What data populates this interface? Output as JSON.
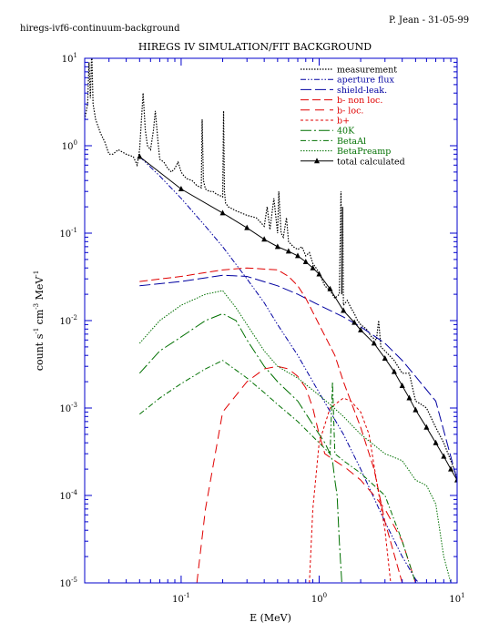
{
  "header": {
    "left": "hiregs-ivf6-continuum-background",
    "right": "P. Jean - 31-05-99"
  },
  "chart_data": {
    "type": "line",
    "title": "HIREGS IV SIMULATION/FIT BACKGROUND",
    "xlabel": "E (MeV)",
    "ylabel_parts": [
      "count s",
      "-1",
      " cm",
      "-3",
      " MeV",
      "-1"
    ],
    "x_scale": "log",
    "y_scale": "log",
    "xlim": [
      0.02,
      10
    ],
    "ylim": [
      1e-05,
      10
    ],
    "x_ticks": [
      {
        "value": 0.1,
        "base": "10",
        "exp": "-1"
      },
      {
        "value": 1,
        "base": "10",
        "exp": "0"
      },
      {
        "value": 10,
        "base": "10",
        "exp": "1"
      }
    ],
    "y_ticks": [
      {
        "value": 1e-05,
        "base": "10",
        "exp": "-5"
      },
      {
        "value": 0.0001,
        "base": "10",
        "exp": "-4"
      },
      {
        "value": 0.001,
        "base": "10",
        "exp": "-3"
      },
      {
        "value": 0.01,
        "base": "10",
        "exp": "-2"
      },
      {
        "value": 0.1,
        "base": "10",
        "exp": "-1"
      },
      {
        "value": 1,
        "base": "10",
        "exp": "0"
      },
      {
        "value": 10,
        "base": "10",
        "exp": "1"
      }
    ],
    "legend_position": "top-right",
    "series": [
      {
        "name": "measurement",
        "color": "#000000",
        "dash": "1.5,1.5",
        "width": 1.2,
        "markers": false,
        "x": [
          0.02,
          0.021,
          0.0215,
          0.022,
          0.0225,
          0.023,
          0.024,
          0.026,
          0.028,
          0.03,
          0.032,
          0.035,
          0.04,
          0.045,
          0.048,
          0.05,
          0.053,
          0.055,
          0.057,
          0.06,
          0.063,
          0.065,
          0.068,
          0.07,
          0.075,
          0.08,
          0.085,
          0.09,
          0.095,
          0.1,
          0.105,
          0.11,
          0.12,
          0.13,
          0.14,
          0.142,
          0.145,
          0.15,
          0.16,
          0.17,
          0.18,
          0.19,
          0.2,
          0.203,
          0.206,
          0.21,
          0.22,
          0.25,
          0.3,
          0.35,
          0.4,
          0.42,
          0.44,
          0.47,
          0.5,
          0.51,
          0.53,
          0.55,
          0.58,
          0.6,
          0.65,
          0.7,
          0.75,
          0.8,
          0.85,
          0.9,
          0.95,
          1.0,
          1.1,
          1.2,
          1.3,
          1.4,
          1.44,
          1.46,
          1.48,
          1.5,
          1.6,
          1.7,
          1.8,
          1.9,
          2.0,
          2.2,
          2.4,
          2.6,
          2.7,
          2.8,
          3.0,
          3.5,
          4.0,
          4.5,
          5.0,
          5.5,
          6.0,
          7.0,
          8.0,
          9.0,
          10.0
        ],
        "y": [
          2.0,
          3.0,
          9.0,
          3.5,
          12.0,
          3.0,
          2.0,
          1.4,
          1.1,
          0.8,
          0.8,
          0.9,
          0.8,
          0.75,
          0.6,
          0.9,
          4.0,
          1.5,
          1.0,
          0.9,
          1.5,
          2.5,
          1.1,
          0.7,
          0.65,
          0.55,
          0.5,
          0.55,
          0.65,
          0.5,
          0.45,
          0.42,
          0.4,
          0.35,
          0.33,
          2.0,
          0.4,
          0.32,
          0.3,
          0.3,
          0.28,
          0.27,
          0.26,
          2.5,
          0.3,
          0.22,
          0.2,
          0.18,
          0.16,
          0.15,
          0.12,
          0.2,
          0.11,
          0.25,
          0.1,
          0.3,
          0.1,
          0.09,
          0.15,
          0.08,
          0.07,
          0.065,
          0.07,
          0.055,
          0.06,
          0.045,
          0.04,
          0.035,
          0.025,
          0.022,
          0.018,
          0.02,
          0.3,
          0.02,
          0.2,
          0.015,
          0.017,
          0.014,
          0.012,
          0.01,
          0.009,
          0.008,
          0.0065,
          0.006,
          0.01,
          0.005,
          0.0045,
          0.0035,
          0.0025,
          0.0025,
          0.0012,
          0.0011,
          0.001,
          0.0006,
          0.0004,
          0.00025,
          0.00016
        ]
      },
      {
        "name": "aperture flux",
        "color": "#0000a0",
        "dash": "6,2,1.5,2,1.5,2",
        "width": 1,
        "markers": false,
        "x": [
          0.05,
          0.07,
          0.1,
          0.15,
          0.2,
          0.3,
          0.4,
          0.5,
          0.7,
          1,
          1.5,
          2,
          3,
          4,
          5,
          6
        ],
        "y": [
          0.75,
          0.45,
          0.25,
          0.12,
          0.07,
          0.03,
          0.016,
          0.009,
          0.004,
          0.0015,
          0.0005,
          0.0002,
          5e-05,
          2e-05,
          1.1e-05,
          8e-06
        ]
      },
      {
        "name": "shield-leak.",
        "color": "#0000a0",
        "dash": "12,4",
        "width": 1,
        "markers": false,
        "x": [
          0.05,
          0.1,
          0.2,
          0.3,
          0.5,
          0.7,
          1,
          1.5,
          2,
          3,
          4,
          5,
          7,
          10
        ],
        "y": [
          0.025,
          0.028,
          0.033,
          0.032,
          0.025,
          0.02,
          0.015,
          0.011,
          0.0085,
          0.0055,
          0.0035,
          0.0023,
          0.0012,
          0.00015
        ]
      },
      {
        "name": "b- non loc.",
        "color": "#e00000",
        "dash": "9,4",
        "width": 1,
        "markers": false,
        "x": [
          0.05,
          0.1,
          0.2,
          0.3,
          0.5,
          0.6,
          0.7,
          0.8,
          1,
          1.3,
          1.5,
          2,
          2.5,
          3,
          4
        ],
        "y": [
          0.028,
          0.032,
          0.038,
          0.04,
          0.038,
          0.032,
          0.025,
          0.018,
          0.009,
          0.004,
          0.002,
          0.0006,
          0.0002,
          5e-05,
          1e-05
        ]
      },
      {
        "name": "b- loc.",
        "color": "#e00000",
        "dash": "10,6",
        "width": 1,
        "markers": false,
        "x": [
          0.13,
          0.15,
          0.2,
          0.3,
          0.4,
          0.5,
          0.6,
          0.7,
          0.8,
          0.9,
          1.0,
          1.1,
          1.3,
          1.6,
          2.0,
          2.5,
          3.0,
          4.0,
          5.0
        ],
        "y": [
          1e-05,
          7e-05,
          0.0009,
          0.002,
          0.0028,
          0.003,
          0.0028,
          0.0023,
          0.0017,
          0.001,
          0.0005,
          0.0003,
          0.00025,
          0.0002,
          0.00015,
          0.0001,
          7e-05,
          3e-05,
          1e-05
        ]
      },
      {
        "name": "b+",
        "color": "#e00000",
        "dash": "3,2.5",
        "width": 1,
        "markers": false,
        "x": [
          0.85,
          0.9,
          1.0,
          1.2,
          1.5,
          1.7,
          2.0,
          2.3,
          2.6,
          3.0,
          3.3
        ],
        "y": [
          1e-05,
          7e-05,
          0.0004,
          0.001,
          0.0013,
          0.0012,
          0.0009,
          0.0005,
          0.00015,
          4e-05,
          1e-05
        ]
      },
      {
        "name": "40K",
        "color": "#007000",
        "dash": "12,3,2,3",
        "width": 1,
        "markers": false,
        "x": [
          0.05,
          0.07,
          0.1,
          0.15,
          0.2,
          0.25,
          0.3,
          0.4,
          0.5,
          0.7,
          1,
          1.1,
          1.2,
          1.25,
          1.3,
          1.35,
          1.4,
          1.46
        ],
        "y": [
          0.0025,
          0.0045,
          0.0065,
          0.01,
          0.012,
          0.01,
          0.006,
          0.003,
          0.002,
          0.0012,
          0.0005,
          0.0004,
          0.0003,
          0.00025,
          0.00015,
          0.0001,
          3e-05,
          1e-05
        ]
      },
      {
        "name": "BetaAl",
        "color": "#007000",
        "dash": "6,2.5,1.5,2.5",
        "width": 1,
        "markers": false,
        "x": [
          0.05,
          0.07,
          0.1,
          0.15,
          0.2,
          0.3,
          0.4,
          0.5,
          0.7,
          1,
          1.2,
          1.25,
          1.3,
          1.5,
          2,
          3,
          4,
          5
        ],
        "y": [
          0.00085,
          0.0013,
          0.0019,
          0.0028,
          0.0035,
          0.0022,
          0.0015,
          0.0011,
          0.0007,
          0.0004,
          0.0003,
          0.002,
          0.0003,
          0.00025,
          0.00018,
          0.0001,
          3e-05,
          1e-05
        ]
      },
      {
        "name": "BetaPreamp",
        "color": "#007000",
        "dash": "1.5,1.5",
        "width": 1,
        "markers": false,
        "x": [
          0.05,
          0.07,
          0.1,
          0.15,
          0.2,
          0.25,
          0.3,
          0.4,
          0.5,
          0.7,
          1,
          1.2,
          1.5,
          2,
          3,
          4,
          5,
          6,
          7,
          8,
          9
        ],
        "y": [
          0.0055,
          0.01,
          0.015,
          0.02,
          0.022,
          0.014,
          0.009,
          0.0045,
          0.003,
          0.0022,
          0.0014,
          0.0011,
          0.0008,
          0.0005,
          0.0003,
          0.00025,
          0.00015,
          0.00013,
          8e-05,
          2e-05,
          1e-05
        ]
      },
      {
        "name": "total calculated",
        "color": "#000000",
        "dash": "",
        "width": 1,
        "markers": true,
        "x": [
          0.05,
          0.1,
          0.2,
          0.3,
          0.4,
          0.5,
          0.6,
          0.7,
          0.8,
          0.9,
          1.0,
          1.2,
          1.5,
          1.8,
          2.0,
          2.5,
          3.0,
          3.5,
          4.0,
          4.5,
          5.0,
          6.0,
          7.0,
          8.0,
          9.0,
          10.0
        ],
        "y": [
          0.75,
          0.32,
          0.17,
          0.115,
          0.085,
          0.07,
          0.062,
          0.055,
          0.047,
          0.04,
          0.034,
          0.023,
          0.013,
          0.0095,
          0.0078,
          0.0055,
          0.0037,
          0.0026,
          0.0018,
          0.0013,
          0.00095,
          0.0006,
          0.0004,
          0.00028,
          0.0002,
          0.00015
        ]
      }
    ]
  }
}
